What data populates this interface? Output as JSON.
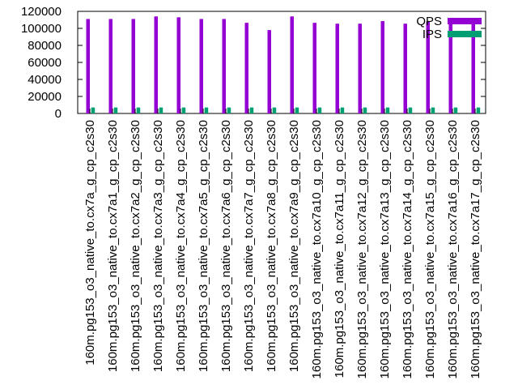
{
  "chart_data": {
    "type": "bar",
    "title": "",
    "xlabel": "",
    "ylabel": "",
    "ylim": [
      0,
      120000
    ],
    "yticks": [
      0,
      20000,
      40000,
      60000,
      80000,
      100000,
      120000
    ],
    "grid": false,
    "legend_position": "top-right",
    "categories": [
      "160m.pg153_o3_native_to.cx7a_g_cp_c2s30",
      "160m.pg153_o3_native_to.cx7a1_g_cp_c2s30",
      "160m.pg153_o3_native_to.cx7a2_g_cp_c2s30",
      "160m.pg153_o3_native_to.cx7a3_g_cp_c2s30",
      "160m.pg153_o3_native_to.cx7a4_g_cp_c2s30",
      "160m.pg153_o3_native_to.cx7a5_g_cp_c2s30",
      "160m.pg153_o3_native_to.cx7a6_g_cp_c2s30",
      "160m.pg153_o3_native_to.cx7a7_g_cp_c2s30",
      "160m.pg153_o3_native_to.cx7a8_g_cp_c2s30",
      "160m.pg153_o3_native_to.cx7a9_g_cp_c2s30",
      "160m.pg153_o3_native_to.cx7a10_g_cp_c2s30",
      "160m.pg153_o3_native_to.cx7a11_g_cp_c2s30",
      "160m.pg153_o3_native_to.cx7a12_g_cp_c2s30",
      "160m.pg153_o3_native_to.cx7a13_g_cp_c2s30",
      "160m.pg153_o3_native_to.cx7a14_g_cp_c2s30",
      "160m.pg153_o3_native_to.cx7a15_g_cp_c2s30",
      "160m.pg153_o3_native_to.cx7a16_g_cp_c2s30",
      "160m.pg153_o3_native_to.cx7a17_g_cp_c2s30"
    ],
    "series": [
      {
        "name": "QPS",
        "color": "#9400d3",
        "values": [
          111000,
          111000,
          111000,
          114000,
          113000,
          111000,
          111000,
          106500,
          98000,
          114000,
          106500,
          105500,
          105500,
          108500,
          105500,
          108000,
          111000,
          108000
        ]
      },
      {
        "name": "IPS",
        "color": "#009e73",
        "values": [
          7000,
          7000,
          7000,
          7000,
          7000,
          7000,
          7000,
          7000,
          7000,
          7000,
          7000,
          7000,
          7000,
          7000,
          7000,
          7000,
          7000,
          7000
        ]
      }
    ]
  }
}
